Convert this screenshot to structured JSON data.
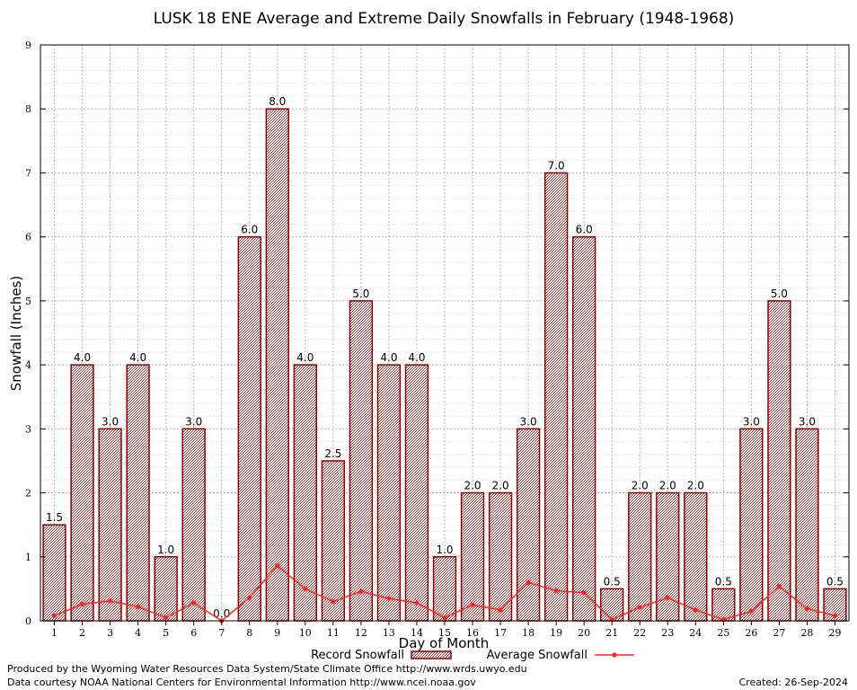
{
  "colors": {
    "bar_fill": "#d8a8a8",
    "bar_stroke": "#8b0000",
    "line": "#ff2020",
    "grid": "#b4b4b4",
    "grid_minor": "#d2d2d2"
  },
  "chart_data": {
    "type": "bar",
    "title": "LUSK 18 ENE Average and Extreme Daily Snowfalls in February (1948-1968)",
    "xlabel": "Day of Month",
    "ylabel": "Snowfall (Inches)",
    "ylim": [
      0,
      9
    ],
    "yticks": [
      "0",
      "1",
      "2",
      "3",
      "4",
      "5",
      "6",
      "7",
      "8",
      "9"
    ],
    "categories": [
      "1",
      "2",
      "3",
      "4",
      "5",
      "6",
      "7",
      "8",
      "9",
      "10",
      "11",
      "12",
      "13",
      "14",
      "15",
      "16",
      "17",
      "18",
      "19",
      "20",
      "21",
      "22",
      "23",
      "24",
      "25",
      "26",
      "27",
      "28",
      "29"
    ],
    "series": [
      {
        "name": "Record Snowfall",
        "type": "bar",
        "values": [
          1.5,
          4.0,
          3.0,
          4.0,
          1.0,
          3.0,
          0.0,
          6.0,
          8.0,
          4.0,
          2.5,
          5.0,
          4.0,
          4.0,
          1.0,
          2.0,
          2.0,
          3.0,
          7.0,
          6.0,
          0.5,
          2.0,
          2.0,
          2.0,
          0.5,
          3.0,
          5.0,
          3.0,
          0.5
        ],
        "labels": [
          "1.5",
          "4.0",
          "3.0",
          "4.0",
          "1.0",
          "3.0",
          "0.0",
          "6.0",
          "8.0",
          "4.0",
          "2.5",
          "5.0",
          "4.0",
          "4.0",
          "1.0",
          "2.0",
          "2.0",
          "3.0",
          "7.0",
          "6.0",
          "0.5",
          "2.0",
          "2.0",
          "2.0",
          "0.5",
          "3.0",
          "5.0",
          "3.0",
          "0.5"
        ]
      },
      {
        "name": "Average Snowfall",
        "type": "line",
        "values": [
          0.08,
          0.26,
          0.31,
          0.22,
          0.05,
          0.28,
          0.0,
          0.36,
          0.86,
          0.5,
          0.3,
          0.46,
          0.35,
          0.28,
          0.05,
          0.25,
          0.17,
          0.6,
          0.47,
          0.44,
          0.02,
          0.21,
          0.36,
          0.17,
          0.02,
          0.15,
          0.54,
          0.19,
          0.08
        ]
      }
    ],
    "grid": true,
    "legend": "bottom-center"
  },
  "legend": {
    "record_label": "Record Snowfall",
    "average_label": "Average Snowfall"
  },
  "footer": {
    "line1": "Produced by the Wyoming Water Resources Data System/State Climate Office http://www.wrds.uwyo.edu",
    "line2": "Data courtesy NOAA National Centers for Environmental Information http://www.ncei.noaa.gov",
    "created": "Created: 26-Sep-2024"
  }
}
